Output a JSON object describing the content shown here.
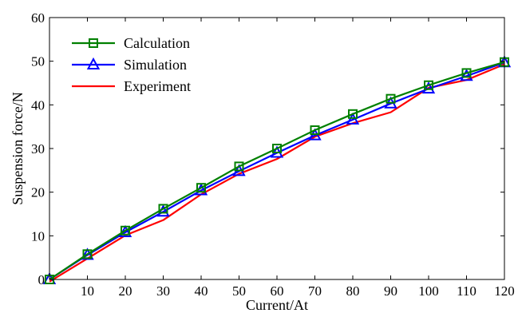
{
  "chart_data": {
    "type": "line",
    "title": "",
    "xlabel": "Current/At",
    "ylabel": "Suspension force/N",
    "xlim": [
      0,
      120
    ],
    "ylim": [
      0,
      60
    ],
    "x": [
      0,
      10,
      20,
      30,
      40,
      50,
      60,
      70,
      80,
      90,
      100,
      110,
      120
    ],
    "x_ticks": [
      0,
      10,
      20,
      30,
      40,
      50,
      60,
      70,
      80,
      90,
      100,
      110,
      120
    ],
    "x_tick_labels": [
      "",
      "10",
      "20",
      "30",
      "40",
      "50",
      "60",
      "70",
      "80",
      "90",
      "100",
      "110",
      "120"
    ],
    "y_ticks": [
      0,
      10,
      20,
      30,
      40,
      50,
      60
    ],
    "y_tick_labels": [
      "0",
      "10",
      "20",
      "30",
      "40",
      "50",
      "60"
    ],
    "grid": false,
    "legend_position": "top-left",
    "series": [
      {
        "name": "Calculation",
        "color": "#008000",
        "marker": "square",
        "values": [
          0,
          5.8,
          11.2,
          16.2,
          21.0,
          25.9,
          30.0,
          34.2,
          37.9,
          41.4,
          44.5,
          47.3,
          49.8
        ]
      },
      {
        "name": "Simulation",
        "color": "#0000ff",
        "marker": "triangle",
        "values": [
          0,
          5.6,
          10.8,
          15.5,
          20.4,
          24.8,
          29.0,
          33.0,
          36.6,
          40.3,
          43.7,
          46.6,
          49.7
        ]
      },
      {
        "name": "Experiment",
        "color": "#ff0000",
        "marker": "none",
        "values": [
          -0.5,
          4.8,
          10.1,
          13.6,
          19.5,
          24.2,
          27.6,
          32.7,
          35.8,
          38.3,
          43.9,
          45.7,
          49.3
        ]
      }
    ]
  }
}
